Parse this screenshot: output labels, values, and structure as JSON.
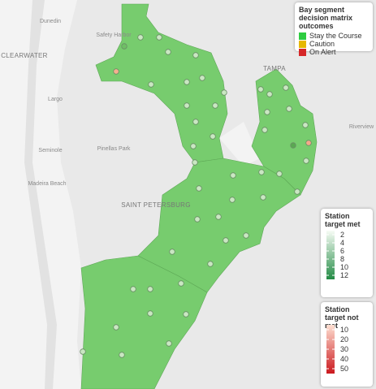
{
  "map": {
    "places": [
      "Dunedin",
      "Safety Harbor",
      "CLEARWATER",
      "Largo",
      "Seminole",
      "Pinellas Park",
      "Madeira Beach",
      "SAINT PETERSBURG",
      "TAMPA",
      "Riverview"
    ],
    "legend": {
      "title": "Bay segment decision matrix outcomes",
      "items": [
        {
          "label": "Stay the Course",
          "color": "#2ecc40"
        },
        {
          "label": "Caution",
          "color": "#e6b800"
        },
        {
          "label": "On Alert",
          "color": "#d62728"
        }
      ]
    },
    "colorbars": [
      {
        "title": "Station target met",
        "lim": [
          1,
          13
        ],
        "ticks": [
          2,
          4,
          6,
          8,
          10,
          12
        ],
        "colors": [
          "#f7fcf5",
          "#238b45"
        ]
      },
      {
        "title": "Station target not met",
        "lim": [
          5,
          55
        ],
        "ticks": [
          10,
          20,
          30,
          40,
          50
        ],
        "colors": [
          "#fee0d2",
          "#cb181d"
        ]
      }
    ]
  }
}
